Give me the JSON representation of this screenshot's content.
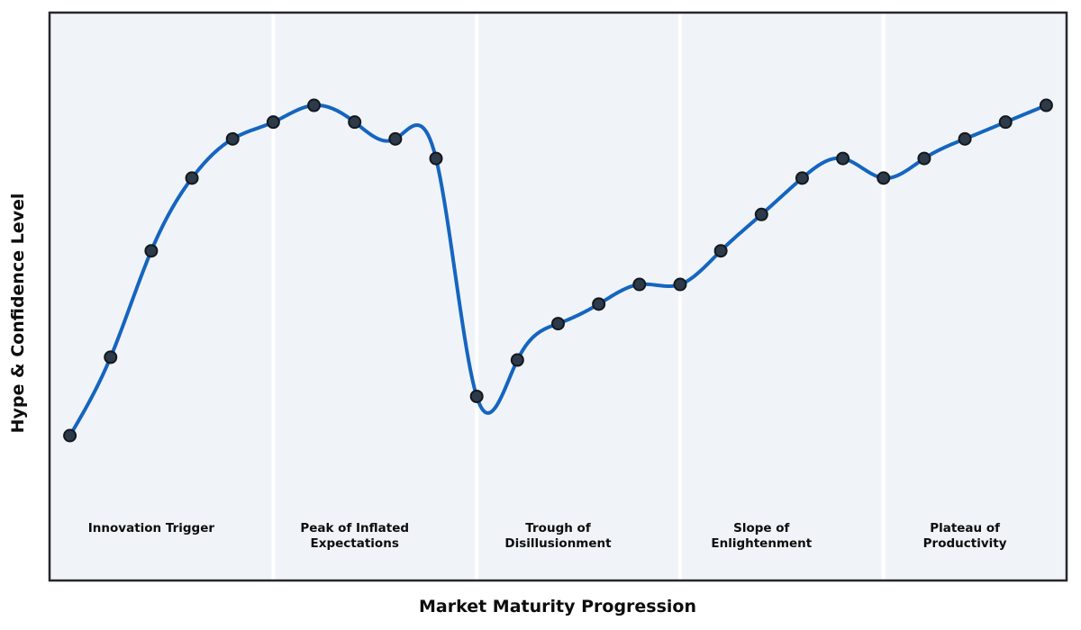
{
  "figure": {
    "background": "#ffffff",
    "plot_background": "#f0f4f8",
    "separator_color": "#ffffff",
    "frame_color": "#26262b",
    "line_color": "#1565c0",
    "marker_fill": "#2c3a4a",
    "marker_stroke": "#14181d",
    "text_color": "#0d0d0d"
  },
  "chart_data": {
    "type": "line",
    "curve": "natural-cubic-spline",
    "title": "",
    "xlabel": "Market Maturity Progression",
    "ylabel": "Hype & Confidence Level",
    "x": [
      0,
      1,
      2,
      3,
      4,
      5,
      6,
      7,
      8,
      9,
      10,
      11,
      12,
      13,
      14,
      15,
      16,
      17,
      18,
      19,
      20,
      21,
      22,
      23,
      24
    ],
    "series": [
      {
        "name": "Hype & Confidence",
        "values": [
          25,
          39,
          58,
          71,
          78,
          81,
          84,
          81,
          78,
          74.5,
          32,
          38.5,
          45,
          48.5,
          52,
          52,
          58,
          64.5,
          71,
          74.5,
          71,
          74.5,
          78,
          81,
          84
        ]
      }
    ],
    "xlim": [
      -0.5,
      24.5
    ],
    "ylim": [
      0,
      100
    ],
    "grid": false,
    "legend": "none",
    "markers": true,
    "phase_boundaries_x": [
      5,
      10,
      15,
      20
    ],
    "phases": [
      {
        "label": "Innovation Trigger",
        "lines": [
          "Innovation Trigger"
        ],
        "center_x": 2
      },
      {
        "label": "Peak of Inflated Expectations",
        "lines": [
          "Peak of Inflated",
          "Expectations"
        ],
        "center_x": 7
      },
      {
        "label": "Trough of Disillusionment",
        "lines": [
          "Trough of",
          "Disillusionment"
        ],
        "center_x": 12
      },
      {
        "label": "Slope of Enlightenment",
        "lines": [
          "Slope of",
          "Enlightenment"
        ],
        "center_x": 17
      },
      {
        "label": "Plateau of Productivity",
        "lines": [
          "Plateau of",
          "Productivity"
        ],
        "center_x": 22
      }
    ]
  }
}
